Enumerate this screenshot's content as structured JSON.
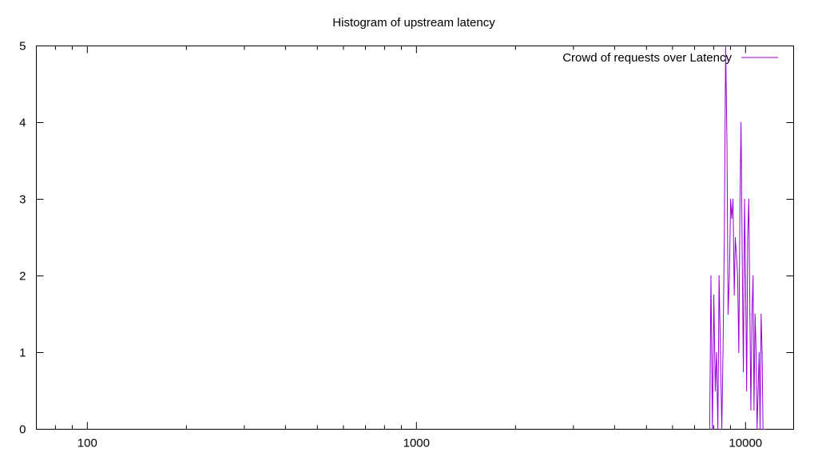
{
  "chart_data": {
    "type": "line",
    "title": "Histogram of upstream latency",
    "xlabel": "",
    "ylabel": "",
    "x_scale": "log",
    "xlim": [
      70,
      14000
    ],
    "ylim": [
      0,
      5
    ],
    "x_ticks": [
      100,
      1000,
      10000
    ],
    "y_ticks": [
      0,
      1,
      2,
      3,
      4,
      5
    ],
    "grid": false,
    "legend_position": "top-right",
    "series": [
      {
        "name": "Crowd of requests over Latency",
        "color": "#9400d3",
        "x": [
          7780,
          7850,
          7930,
          8010,
          8090,
          8160,
          8240,
          8310,
          8390,
          8470,
          8540,
          8620,
          8700,
          8780,
          8850,
          8930,
          9010,
          9080,
          9160,
          9240,
          9310,
          9390,
          9460,
          9540,
          9620,
          9690,
          9770,
          9850,
          9930,
          10000,
          10080,
          10150,
          10230,
          10310,
          10380,
          10460,
          10540,
          10610,
          10690,
          10770,
          10840,
          10920,
          11000,
          11070,
          11150,
          11230,
          11300,
          11380,
          11460
        ],
        "y": [
          0,
          2,
          0,
          1.75,
          0.5,
          1,
          0,
          2,
          1,
          0,
          1,
          2.5,
          5,
          3.75,
          1.5,
          2,
          3,
          2.75,
          3,
          1.75,
          2.5,
          2.25,
          2,
          1,
          3,
          4,
          2.25,
          0.75,
          3,
          2,
          0.5,
          2.5,
          3,
          1.5,
          0.25,
          1.5,
          2,
          0.25,
          1.5,
          1,
          0,
          0.5,
          1,
          0,
          1.5,
          1,
          0,
          0,
          0
        ]
      }
    ]
  }
}
